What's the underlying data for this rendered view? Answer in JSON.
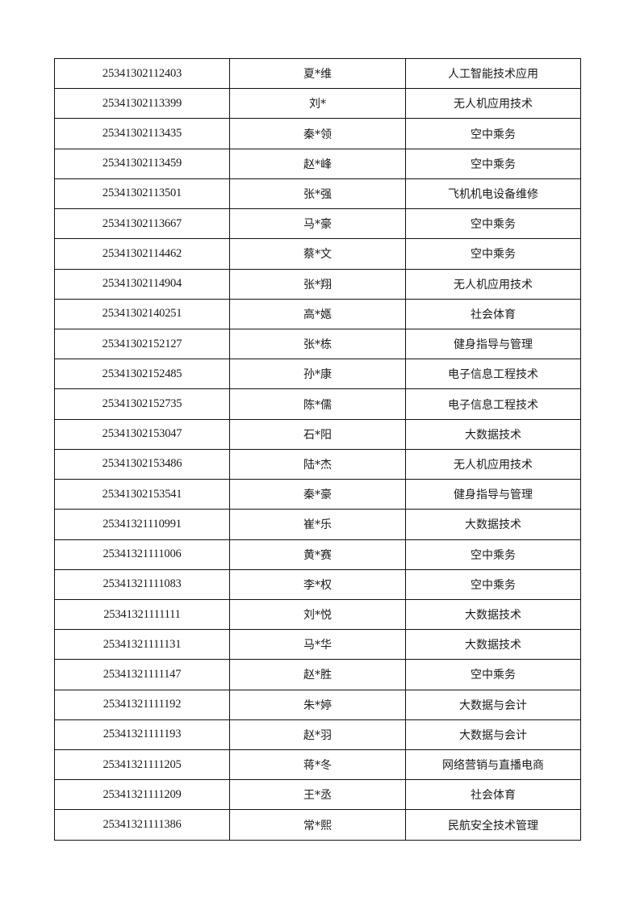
{
  "table": {
    "rows": [
      {
        "id": "25341302112403",
        "name": "夏*维",
        "major": "人工智能技术应用"
      },
      {
        "id": "25341302113399",
        "name": "刘*",
        "major": "无人机应用技术"
      },
      {
        "id": "25341302113435",
        "name": "秦*领",
        "major": "空中乘务"
      },
      {
        "id": "25341302113459",
        "name": "赵*峰",
        "major": "空中乘务"
      },
      {
        "id": "25341302113501",
        "name": "张*强",
        "major": "飞机机电设备维修"
      },
      {
        "id": "25341302113667",
        "name": "马*豪",
        "major": "空中乘务"
      },
      {
        "id": "25341302114462",
        "name": "蔡*文",
        "major": "空中乘务"
      },
      {
        "id": "25341302114904",
        "name": "张*翔",
        "major": "无人机应用技术"
      },
      {
        "id": "25341302140251",
        "name": "高*嫕",
        "major": "社会体育"
      },
      {
        "id": "25341302152127",
        "name": "张*栋",
        "major": "健身指导与管理"
      },
      {
        "id": "25341302152485",
        "name": "孙*康",
        "major": "电子信息工程技术"
      },
      {
        "id": "25341302152735",
        "name": "陈*儒",
        "major": "电子信息工程技术"
      },
      {
        "id": "25341302153047",
        "name": "石*阳",
        "major": "大数据技术"
      },
      {
        "id": "25341302153486",
        "name": "陆*杰",
        "major": "无人机应用技术"
      },
      {
        "id": "25341302153541",
        "name": "秦*豪",
        "major": "健身指导与管理"
      },
      {
        "id": "25341321110991",
        "name": "崔*乐",
        "major": "大数据技术"
      },
      {
        "id": "25341321111006",
        "name": "黄*赛",
        "major": "空中乘务"
      },
      {
        "id": "25341321111083",
        "name": "李*权",
        "major": "空中乘务"
      },
      {
        "id": "25341321111111",
        "name": "刘*悦",
        "major": "大数据技术"
      },
      {
        "id": "25341321111131",
        "name": "马*华",
        "major": "大数据技术"
      },
      {
        "id": "25341321111147",
        "name": "赵*胜",
        "major": "空中乘务"
      },
      {
        "id": "25341321111192",
        "name": "朱*婷",
        "major": "大数据与会计"
      },
      {
        "id": "25341321111193",
        "name": "赵*羽",
        "major": "大数据与会计"
      },
      {
        "id": "25341321111205",
        "name": "蒋*冬",
        "major": "网络营销与直播电商"
      },
      {
        "id": "25341321111209",
        "name": "王*丞",
        "major": "社会体育"
      },
      {
        "id": "25341321111386",
        "name": "常*熙",
        "major": "民航安全技术管理"
      }
    ]
  }
}
